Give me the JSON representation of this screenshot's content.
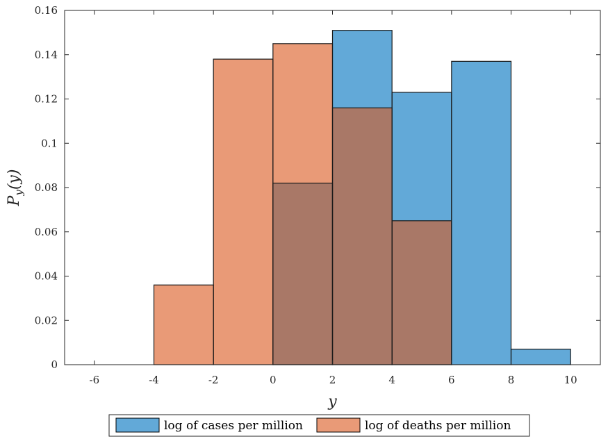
{
  "chart_data": {
    "type": "bar",
    "subtype": "overlapping-histogram",
    "title": "",
    "xlabel": "y",
    "ylabel_main": "P",
    "ylabel_sub": "y",
    "ylabel_arg": "(y)",
    "xlim": [
      -7,
      11
    ],
    "ylim": [
      0,
      0.16
    ],
    "grid": false,
    "legend_placement": "bottom-outside",
    "x_ticks": [
      -6,
      -4,
      -2,
      0,
      2,
      4,
      6,
      8,
      10
    ],
    "x_tick_labels": [
      "-6",
      "-4",
      "-2",
      "0",
      "2",
      "4",
      "6",
      "8",
      "10"
    ],
    "y_ticks": [
      0,
      0.02,
      0.04,
      0.06,
      0.08,
      0.1,
      0.12,
      0.14,
      0.16
    ],
    "y_tick_labels": [
      "0",
      "0.02",
      "0.04",
      "0.06",
      "0.08",
      "0.1",
      "0.12",
      "0.14",
      "0.16"
    ],
    "bin_edges": [
      -6,
      -4,
      -2,
      0,
      2,
      4,
      6,
      8,
      10
    ],
    "series": [
      {
        "name": "log of cases per million",
        "color": "#62a9d8",
        "values": [
          0,
          0,
          0,
          0.082,
          0.151,
          0.123,
          0.137,
          0.007
        ]
      },
      {
        "name": "log of deaths per million",
        "color": "#e99a77",
        "values": [
          0,
          0.036,
          0.138,
          0.145,
          0.116,
          0.065,
          0,
          0
        ]
      }
    ],
    "overlap_color": "#a97867"
  }
}
